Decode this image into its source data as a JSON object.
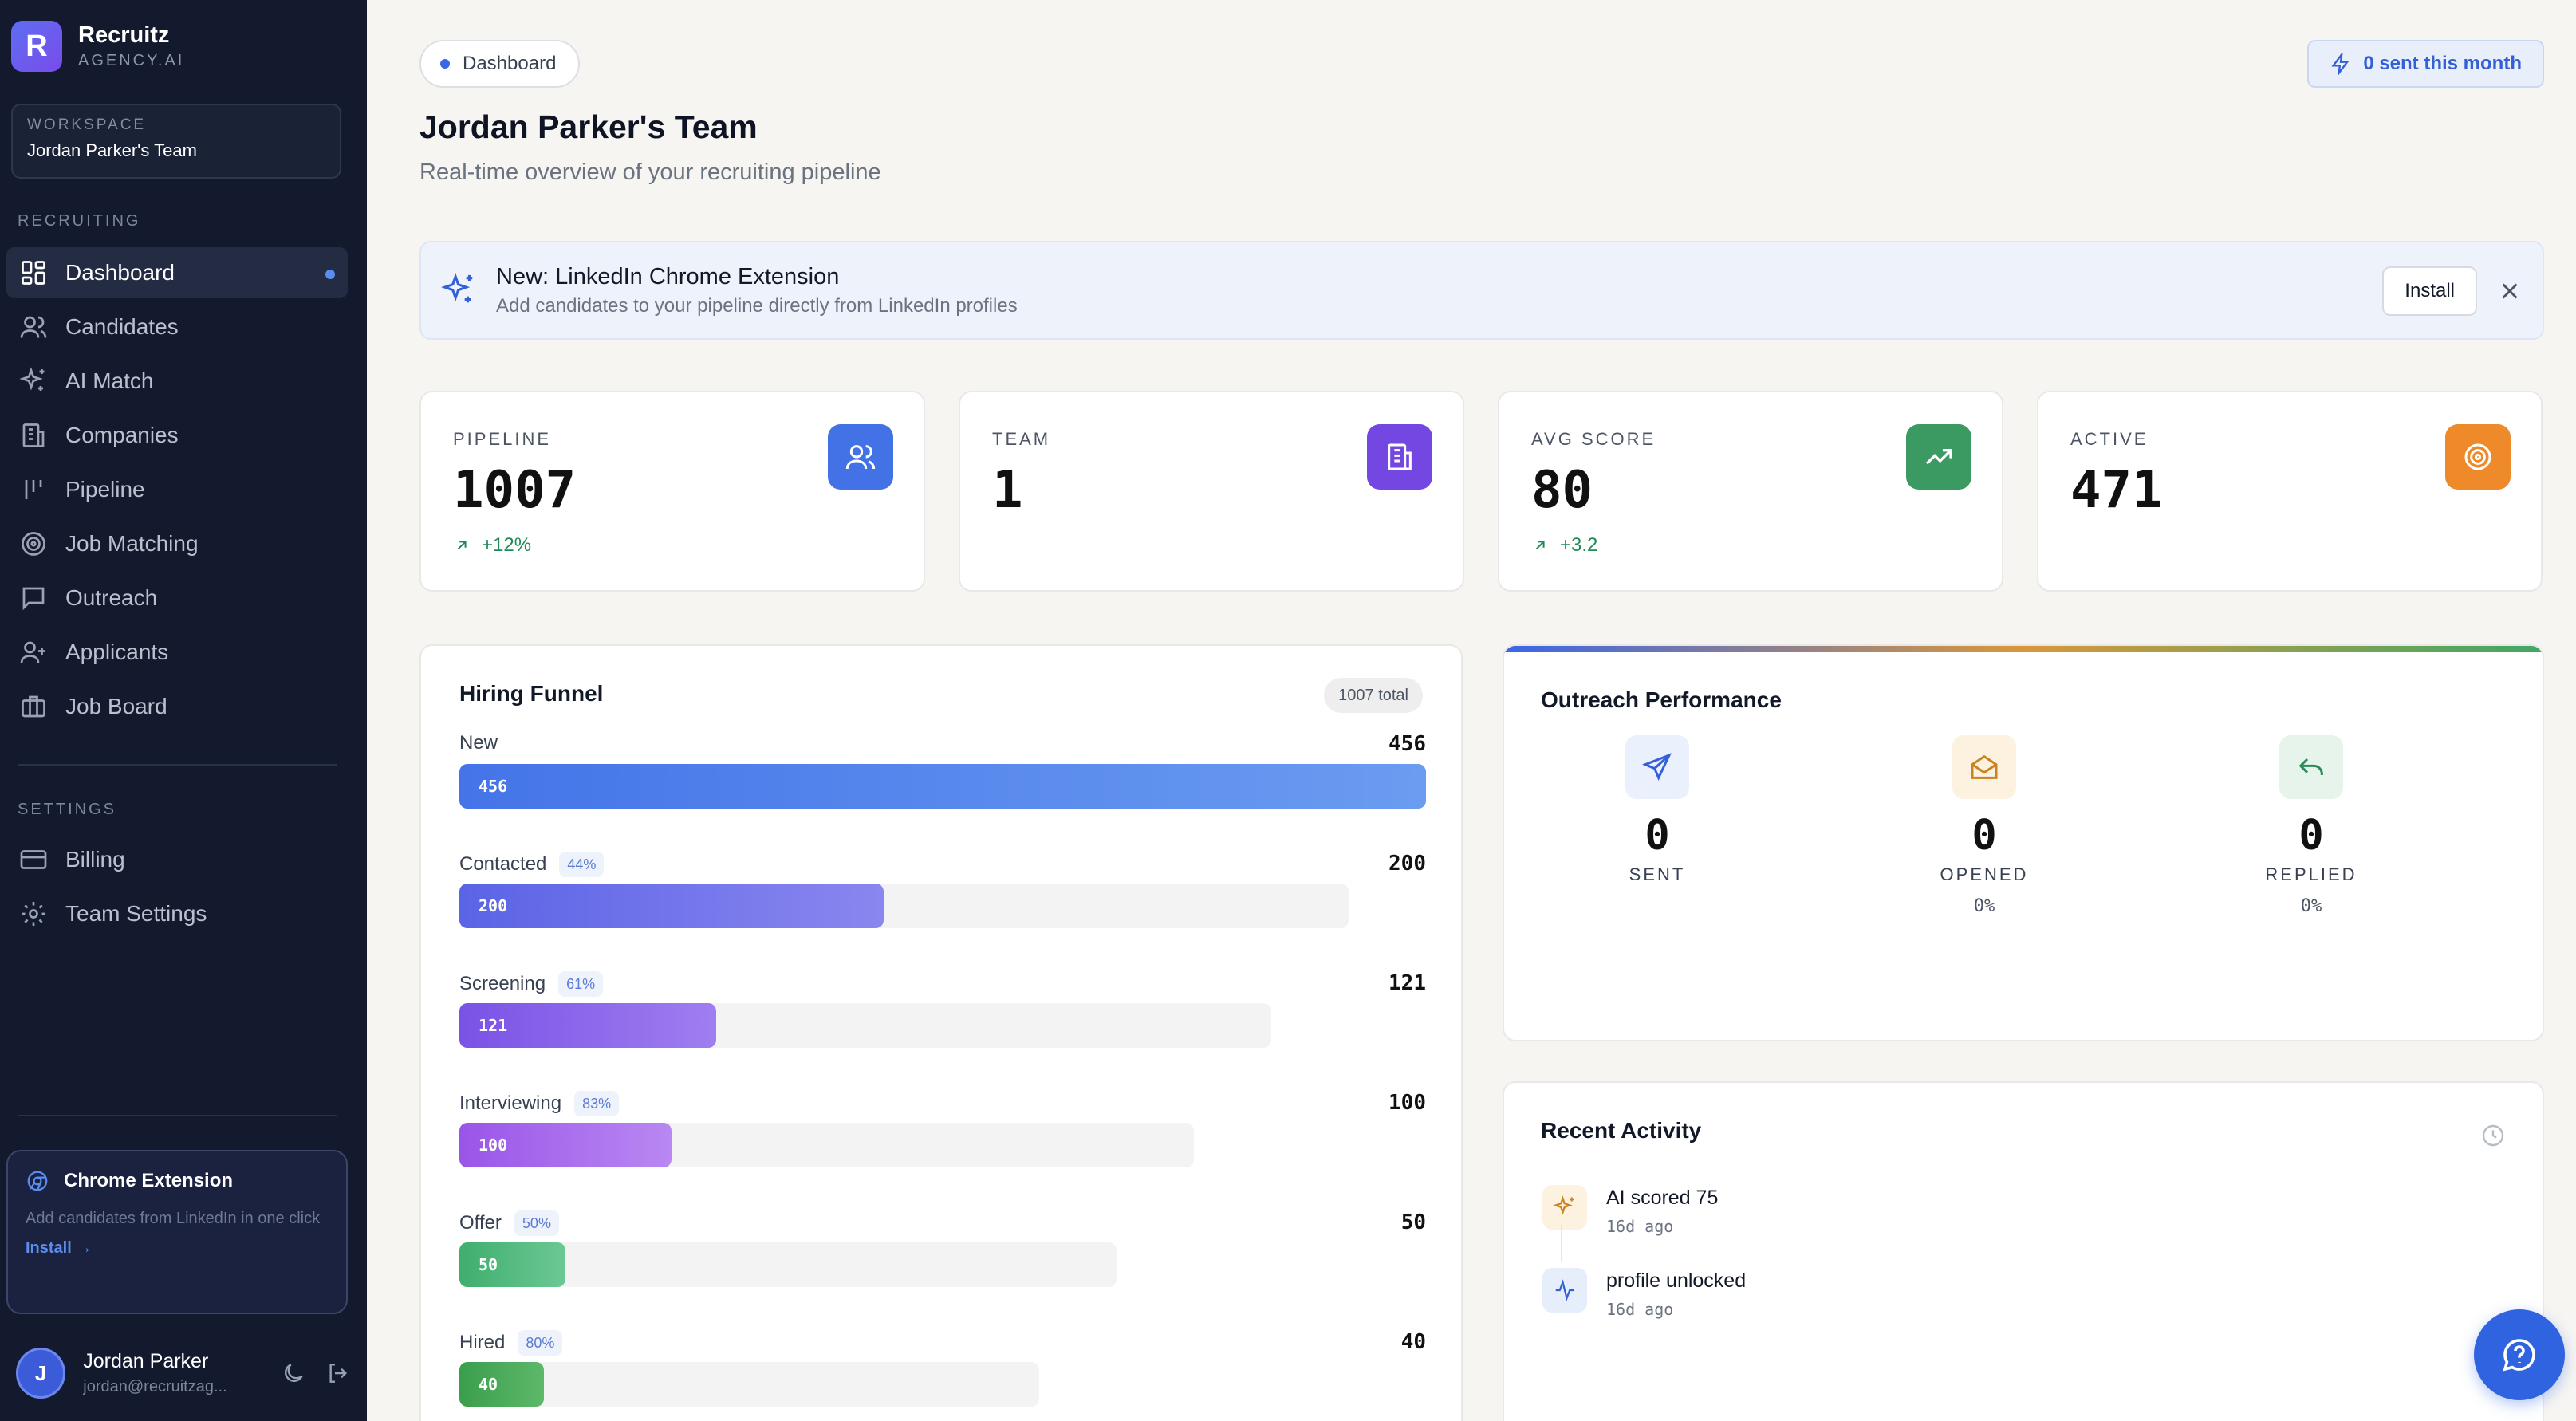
{
  "brand": {
    "name": "Recruitz",
    "sub": "AGENCY.AI",
    "logo_letter": "R"
  },
  "workspace": {
    "label": "WORKSPACE",
    "name": "Jordan Parker's Team"
  },
  "sidebar": {
    "recruiting_label": "RECRUITING",
    "recruiting_items": [
      {
        "label": "Dashboard",
        "icon": "dashboard-icon",
        "active": true
      },
      {
        "label": "Candidates",
        "icon": "users-icon"
      },
      {
        "label": "AI Match",
        "icon": "sparkles-icon"
      },
      {
        "label": "Companies",
        "icon": "building-icon"
      },
      {
        "label": "Pipeline",
        "icon": "pipeline-icon"
      },
      {
        "label": "Job Matching",
        "icon": "target-icon"
      },
      {
        "label": "Outreach",
        "icon": "message-icon"
      },
      {
        "label": "Applicants",
        "icon": "user-plus-icon"
      },
      {
        "label": "Job Board",
        "icon": "briefcase-icon"
      }
    ],
    "settings_label": "SETTINGS",
    "settings_items": [
      {
        "label": "Billing",
        "icon": "credit-card-icon"
      },
      {
        "label": "Team Settings",
        "icon": "gear-icon"
      }
    ]
  },
  "promo": {
    "title": "Chrome Extension",
    "text": "Add candidates from LinkedIn in one click",
    "link": "Install →"
  },
  "user": {
    "initial": "J",
    "name": "Jordan Parker",
    "email": "jordan@recruitzag..."
  },
  "header": {
    "pill": "Dashboard",
    "title": "Jordan Parker's Team",
    "subtitle": "Real-time overview of your recruiting pipeline",
    "sent_badge": "0 sent this month"
  },
  "banner": {
    "title": "New: LinkedIn Chrome Extension",
    "subtitle": "Add candidates to your pipeline directly from LinkedIn profiles",
    "install": "Install"
  },
  "stats": [
    {
      "label": "PIPELINE",
      "value": "1007",
      "delta": "+12%",
      "icon": "users-icon",
      "color": "#4272e6"
    },
    {
      "label": "TEAM",
      "value": "1",
      "delta": "",
      "icon": "building-icon",
      "color": "#7446e2"
    },
    {
      "label": "AVG SCORE",
      "value": "80",
      "delta": "+3.2",
      "icon": "trending-up-icon",
      "color": "#3a9a62"
    },
    {
      "label": "ACTIVE",
      "value": "471",
      "delta": "",
      "icon": "target-icon",
      "color": "#ee8a2a"
    }
  ],
  "funnel": {
    "title": "Hiring Funnel",
    "total": "1007 total",
    "stages": [
      {
        "label": "New",
        "pct": "",
        "count": 456,
        "color_from": "#4474e8",
        "color_to": "#6a9cf1",
        "track": 1.0
      },
      {
        "label": "Contacted",
        "pct": "44%",
        "count": 200,
        "color_from": "#5a64e6",
        "color_to": "#8a86ef",
        "track": 0.92
      },
      {
        "label": "Screening",
        "pct": "61%",
        "count": 121,
        "color_from": "#7a52e6",
        "color_to": "#a07ef0",
        "track": 0.84
      },
      {
        "label": "Interviewing",
        "pct": "83%",
        "count": 100,
        "color_from": "#9a55e8",
        "color_to": "#b988f2",
        "track": 0.76
      },
      {
        "label": "Offer",
        "pct": "50%",
        "count": 50,
        "color_from": "#3fae6e",
        "color_to": "#6cc893",
        "track": 0.68
      },
      {
        "label": "Hired",
        "pct": "80%",
        "count": 40,
        "color_from": "#3a9e4d",
        "color_to": "#5db86a",
        "track": 0.6
      }
    ]
  },
  "outreach": {
    "title": "Outreach Performance",
    "metrics": [
      {
        "label": "SENT",
        "value": "0",
        "pct": "",
        "icon": "send-icon",
        "bg": "#eaf0fc",
        "fg": "#3360d6"
      },
      {
        "label": "OPENED",
        "value": "0",
        "pct": "0%",
        "icon": "mail-open-icon",
        "bg": "#fcf2df",
        "fg": "#c98322"
      },
      {
        "label": "REPLIED",
        "value": "0",
        "pct": "0%",
        "icon": "reply-icon",
        "bg": "#e6f4ec",
        "fg": "#2e8a56"
      }
    ]
  },
  "activity": {
    "title": "Recent Activity",
    "items": [
      {
        "title": "AI scored 75",
        "time": "16d ago",
        "icon": "sparkles-icon",
        "bg": "#fcf2df",
        "fg": "#c98322"
      },
      {
        "title": "profile unlocked",
        "time": "16d ago",
        "icon": "activity-icon",
        "bg": "#e6edfb",
        "fg": "#3360d6"
      }
    ]
  }
}
